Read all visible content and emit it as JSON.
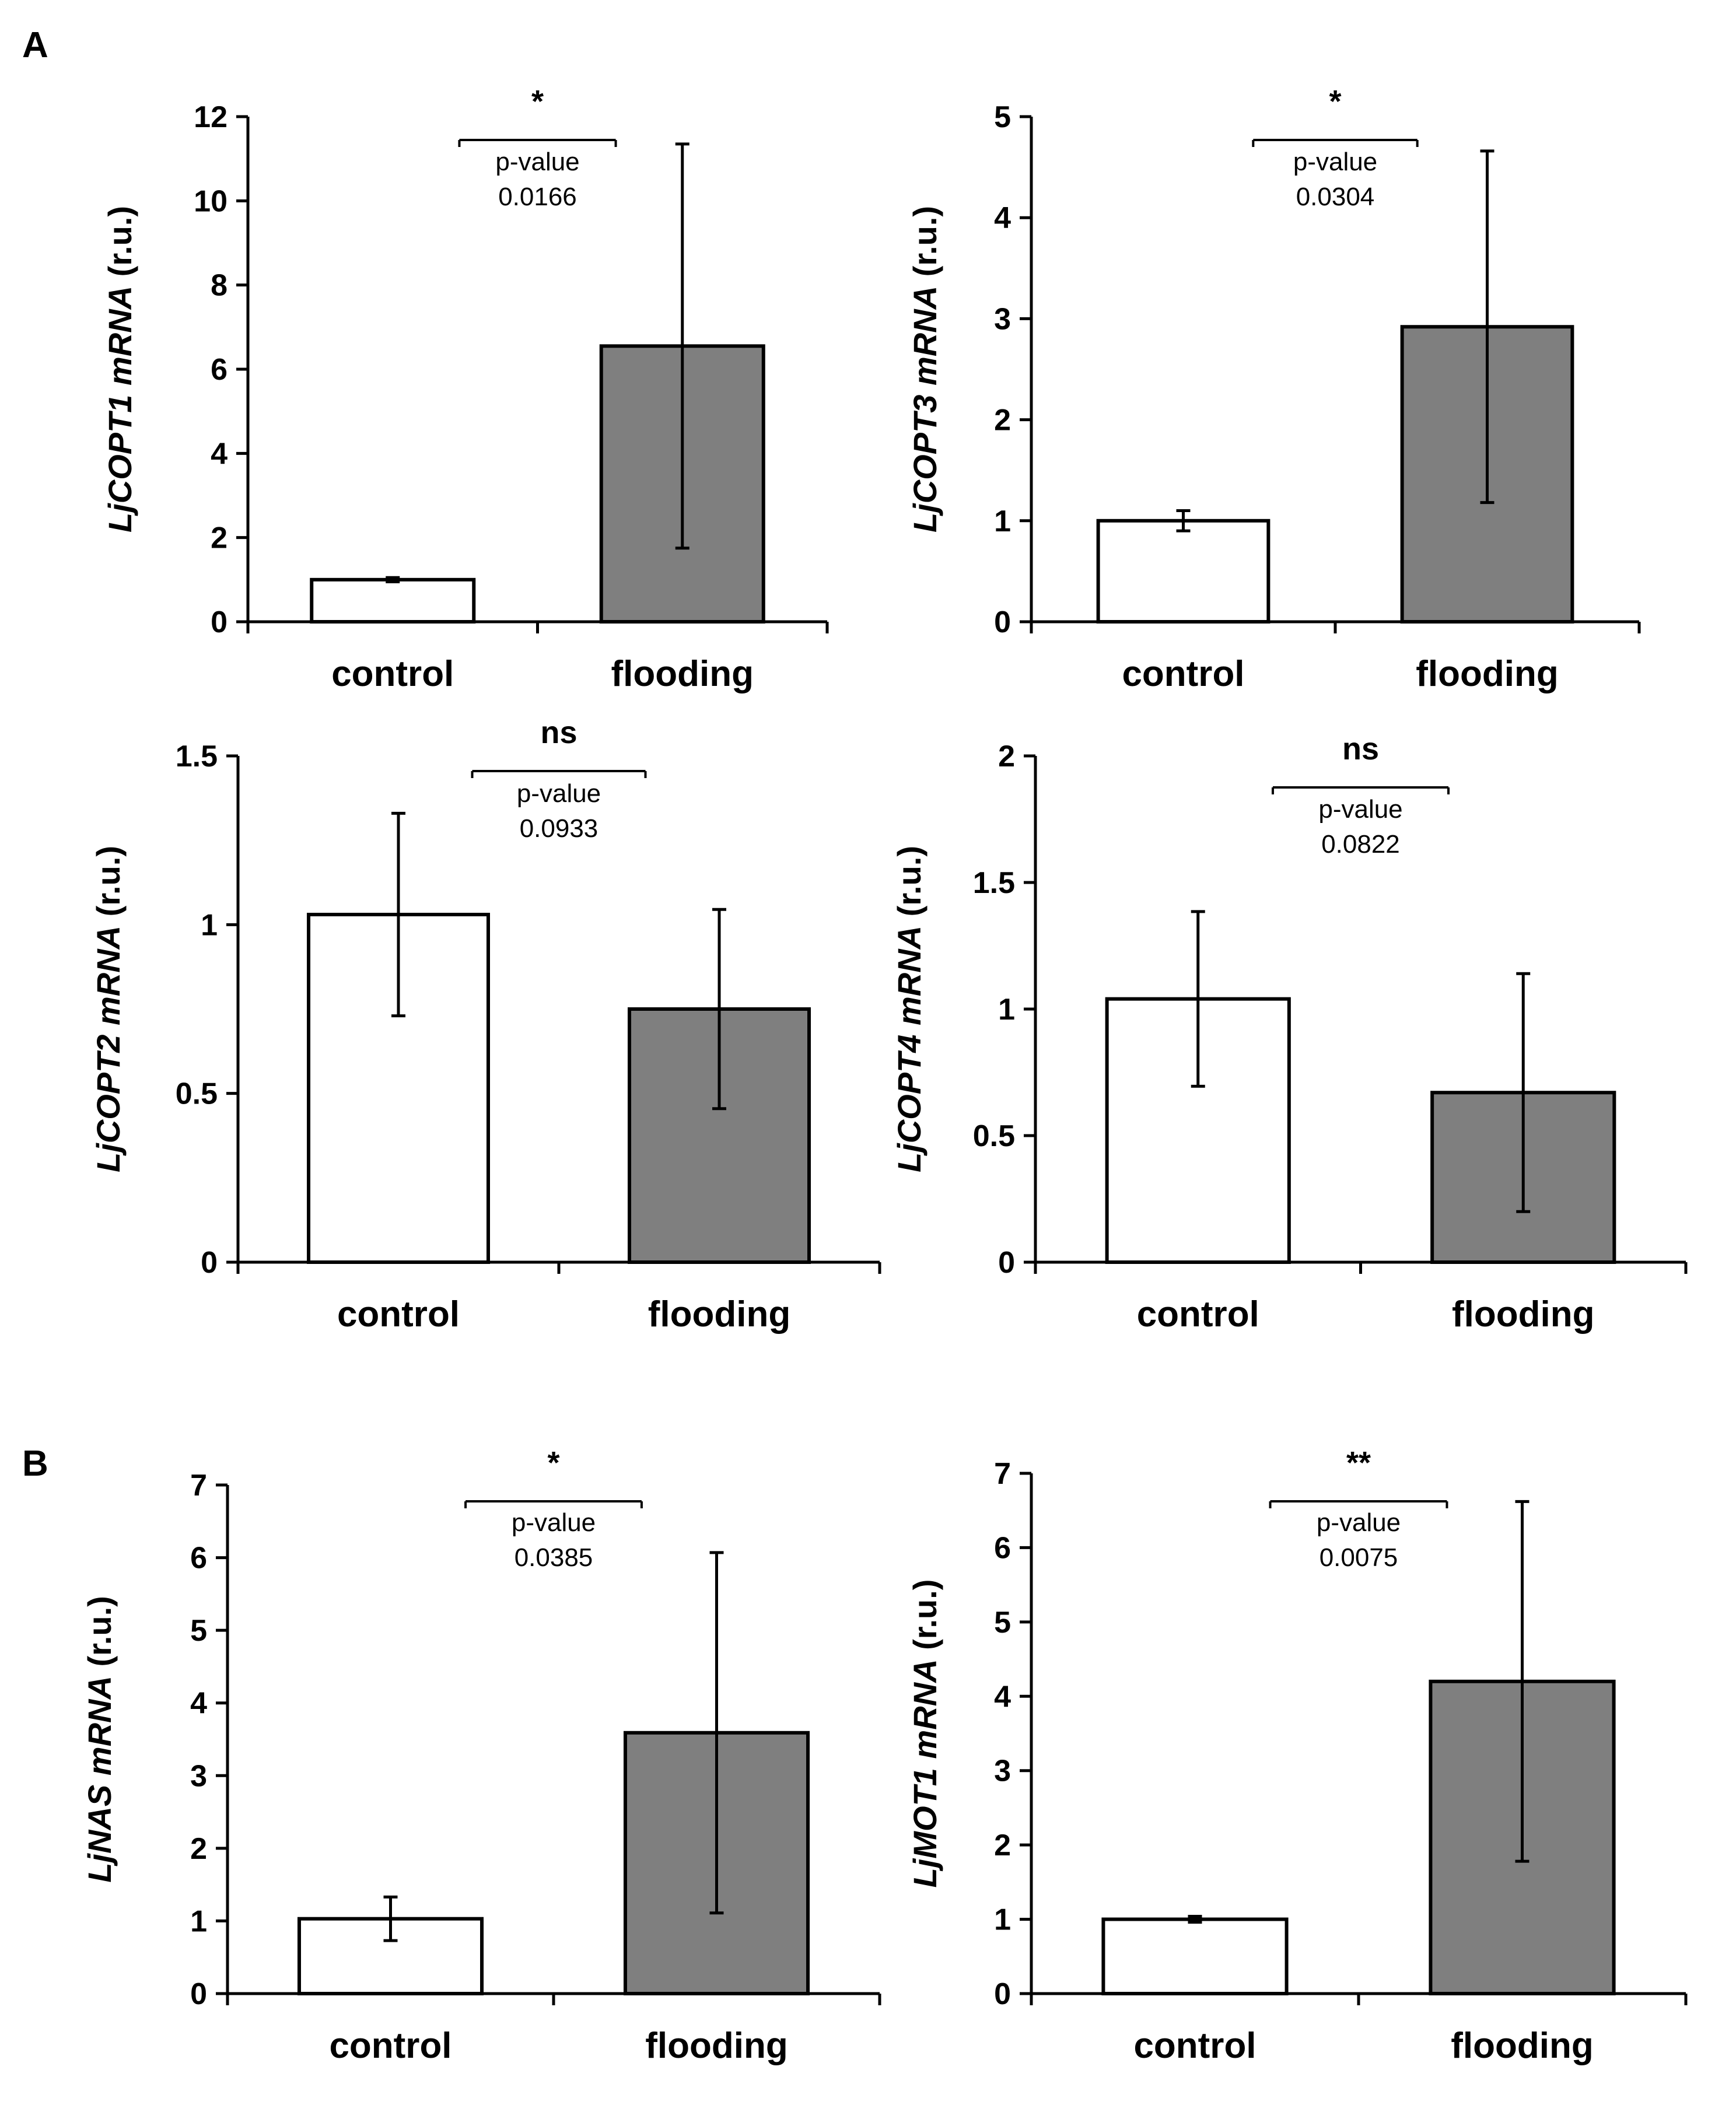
{
  "panel_labels": [
    "A",
    "B"
  ],
  "chart_data": [
    {
      "type": "bar",
      "panel": "A",
      "ylabel_gene": "LjCOPT1 mRNA",
      "ylabel_unit": " (r.u.)",
      "categories": [
        "control",
        "flooding"
      ],
      "values": [
        1.0,
        6.55
      ],
      "errors": [
        0.05,
        4.8
      ],
      "bar_colors": [
        "#ffffff",
        "#7f7f7f"
      ],
      "ylim": [
        0,
        12
      ],
      "yticks": [
        0,
        2,
        4,
        6,
        8,
        10,
        12
      ],
      "ytick_labels": [
        "0",
        "2",
        "4",
        "6",
        "8",
        "10",
        "12"
      ],
      "significance": "*",
      "pvalue_label": "p-value",
      "pvalue": "0.0166"
    },
    {
      "type": "bar",
      "panel": "A",
      "ylabel_gene": "LjCOPT3 mRNA",
      "ylabel_unit": " (r.u.)",
      "categories": [
        "control",
        "flooding"
      ],
      "values": [
        1.0,
        2.92
      ],
      "errors": [
        0.1,
        1.74
      ],
      "bar_colors": [
        "#ffffff",
        "#7f7f7f"
      ],
      "ylim": [
        0,
        5
      ],
      "yticks": [
        0,
        1,
        2,
        3,
        4,
        5
      ],
      "ytick_labels": [
        "0",
        "1",
        "2",
        "3",
        "4",
        "5"
      ],
      "significance": "*",
      "pvalue_label": "p-value",
      "pvalue": "0.0304"
    },
    {
      "type": "bar",
      "panel": "A",
      "ylabel_gene": "LjCOPT2 mRNA",
      "ylabel_unit": " (r.u.)",
      "categories": [
        "control",
        "flooding"
      ],
      "values": [
        1.03,
        0.75
      ],
      "errors": [
        0.3,
        0.295
      ],
      "bar_colors": [
        "#ffffff",
        "#7f7f7f"
      ],
      "ylim": [
        0,
        1.5
      ],
      "yticks": [
        0,
        0.5,
        1,
        1.5
      ],
      "ytick_labels": [
        "0",
        "0.5",
        "1",
        "1.5"
      ],
      "significance": "ns",
      "pvalue_label": "p-value",
      "pvalue": "0.0933"
    },
    {
      "type": "bar",
      "panel": "A",
      "ylabel_gene": "LjCOPT4 mRNA",
      "ylabel_unit": " (r.u.)",
      "categories": [
        "control",
        "flooding"
      ],
      "values": [
        1.04,
        0.67
      ],
      "errors": [
        0.345,
        0.47
      ],
      "bar_colors": [
        "#ffffff",
        "#7f7f7f"
      ],
      "ylim": [
        0,
        2
      ],
      "yticks": [
        0,
        0.5,
        1,
        1.5,
        2
      ],
      "ytick_labels": [
        "0",
        "0.5",
        "1",
        "1.5",
        "2"
      ],
      "significance": "ns",
      "pvalue_label": "p-value",
      "pvalue": "0.0822"
    },
    {
      "type": "bar",
      "panel": "B",
      "ylabel_gene": "LjNAS mRNA",
      "ylabel_unit": " (r.u.)",
      "categories": [
        "control",
        "flooding"
      ],
      "values": [
        1.03,
        3.59
      ],
      "errors": [
        0.3,
        2.48
      ],
      "bar_colors": [
        "#ffffff",
        "#7f7f7f"
      ],
      "ylim": [
        0,
        7
      ],
      "yticks": [
        0,
        1,
        2,
        3,
        4,
        5,
        6,
        7
      ],
      "ytick_labels": [
        "0",
        "1",
        "2",
        "3",
        "4",
        "5",
        "6",
        "7"
      ],
      "significance": "*",
      "pvalue_label": "p-value",
      "pvalue": "0.0385"
    },
    {
      "type": "bar",
      "panel": "B",
      "ylabel_gene": "LjMOT1 mRNA",
      "ylabel_unit": " (r.u.)",
      "categories": [
        "control",
        "flooding"
      ],
      "values": [
        1.0,
        4.2
      ],
      "errors": [
        0.04,
        2.42
      ],
      "bar_colors": [
        "#ffffff",
        "#7f7f7f"
      ],
      "ylim": [
        0,
        7
      ],
      "yticks": [
        0,
        1,
        2,
        3,
        4,
        5,
        6,
        7
      ],
      "ytick_labels": [
        "0",
        "1",
        "2",
        "3",
        "4",
        "5",
        "6",
        "7"
      ],
      "significance": "**",
      "pvalue_label": "p-value",
      "pvalue": "0.0075"
    }
  ]
}
